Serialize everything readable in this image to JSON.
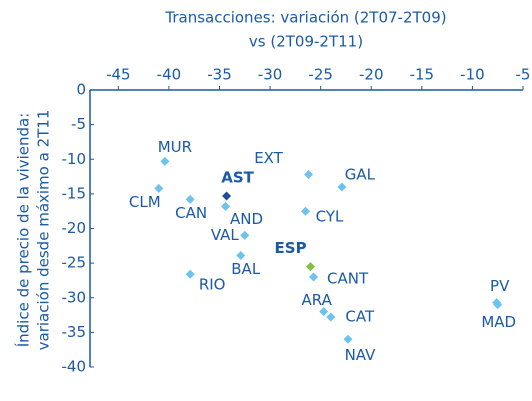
{
  "chart_data": {
    "type": "scatter",
    "title": [
      "Transacciones: variación (2T07-2T09)",
      "vs (2T09-2T11)"
    ],
    "y_label": [
      "Índice de precio de la vivienda:",
      "variación desde máximo a 2T11"
    ],
    "series": [
      {
        "labels": [
          "MUR",
          "EXT",
          "GAL",
          "CLM",
          "AST",
          "CAN",
          "AND",
          "CYL",
          "VAL",
          "BAL",
          "ESP",
          "CANT",
          "RIO",
          "ARA",
          "CAT",
          "NAV",
          "PV",
          "MAD"
        ],
        "x": [
          -40.4,
          -26.2,
          -22.9,
          -41.0,
          -34.3,
          -37.9,
          -34.4,
          -26.5,
          -32.5,
          -32.9,
          -26.0,
          -25.7,
          -37.9,
          -24.7,
          -24.0,
          -22.3,
          -7.6,
          -7.5
        ],
        "values": [
          -10.3,
          -12.2,
          -14.0,
          -14.2,
          -15.3,
          -15.8,
          -16.8,
          -17.5,
          -21.0,
          -23.9,
          -25.5,
          -27.0,
          -26.6,
          -32.0,
          -32.8,
          -36.0,
          -30.7,
          -31.0
        ],
        "colors": [
          "#6cc4ee",
          "#6cc4ee",
          "#6cc4ee",
          "#6cc4ee",
          "#1f4e9a",
          "#6cc4ee",
          "#6cc4ee",
          "#6cc4ee",
          "#6cc4ee",
          "#6cc4ee",
          "#7cc242",
          "#6cc4ee",
          "#6cc4ee",
          "#6cc4ee",
          "#6cc4ee",
          "#6cc4ee",
          "#6cc4ee",
          "#6cc4ee"
        ]
      }
    ],
    "xlim": [
      -47.8,
      -5
    ],
    "xticks": [
      -45,
      -40,
      -35,
      -30,
      -25,
      -20,
      -15,
      -10,
      -5
    ],
    "ylim": [
      -40,
      0
    ],
    "yticks": [
      0,
      -5,
      -10,
      -15,
      -20,
      -25,
      -30,
      -35,
      -40
    ]
  }
}
